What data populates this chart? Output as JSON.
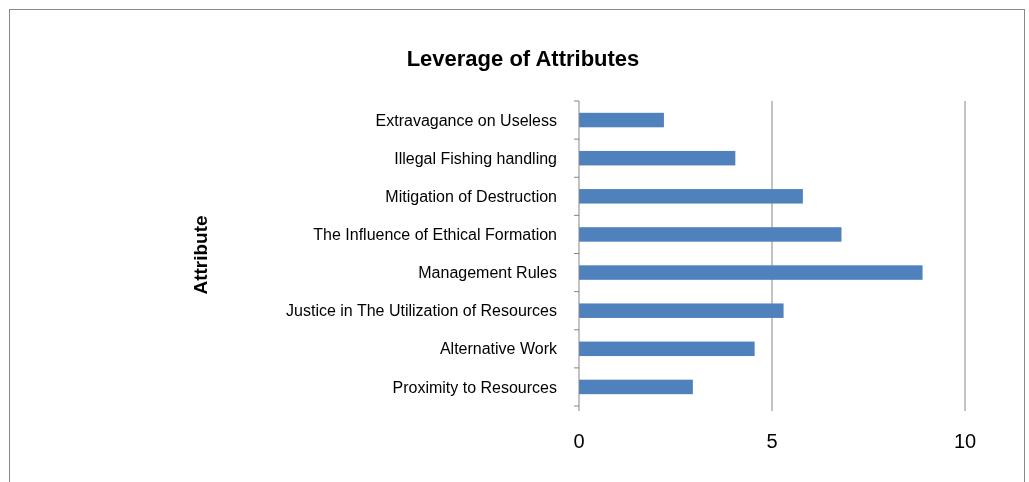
{
  "chart_data": {
    "type": "bar",
    "orientation": "horizontal",
    "title": "Leverage of Attributes",
    "ylabel": "Attribute",
    "categories": [
      "Extravagance on Useless",
      "Illegal Fishing handling",
      "Mitigation of Destruction",
      "The Influence of Ethical Formation",
      "Management Rules",
      "Justice in The Utilization of Resources",
      "Alternative Work",
      "Proximity to Resources"
    ],
    "values": [
      2.2,
      4.05,
      5.8,
      6.8,
      8.9,
      5.3,
      4.55,
      2.95
    ],
    "color": "#4f81bd",
    "xlim": [
      0,
      10
    ],
    "xticks": [
      0,
      5,
      10
    ],
    "grid": "x"
  }
}
